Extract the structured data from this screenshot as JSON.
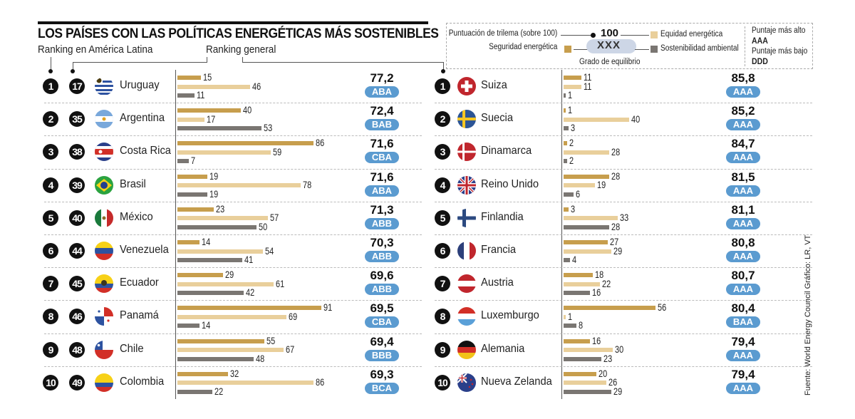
{
  "header": {
    "title": "LOS PAÍSES CON LAS POLÍTICAS ENERGÉTICAS MÁS SOSTENIBLES",
    "subtitle_latam": "Ranking en América Latina",
    "subtitle_general": "Ranking general"
  },
  "legend": {
    "trilemma_label": "Puntuación de trilema (sobre 100)",
    "trilemma_example": "100",
    "grade_example": "XXX",
    "grade_label": "Grado de equilibrio",
    "security_label": "Seguridad energética",
    "equity_label": "Equidad energética",
    "sustainability_label": "Sostenibilidad ambiental",
    "highest_label": "Puntaje más alto",
    "highest_value": "AAA",
    "lowest_label": "Puntaje más bajo",
    "lowest_value": "DDD",
    "colors": {
      "security": "#c79e4d",
      "equity": "#e9cf9b",
      "sustainability": "#7a7672",
      "grade_badge": "#5b9bd0"
    }
  },
  "source": "Fuente: World Energy Council Gráfico: LR, VT",
  "chart_data": [
    {
      "type": "bar",
      "title": "Ranking en América Latina",
      "series_names": [
        "Seguridad energética",
        "Equidad energética",
        "Sostenibilidad ambiental"
      ],
      "rows": [
        {
          "rank": "1",
          "general_rank": "17",
          "country": "Uruguay",
          "flag": "uruguay",
          "security": 15,
          "equity": 46,
          "sustainability": 11,
          "score": "77,2",
          "grade": "ABA"
        },
        {
          "rank": "2",
          "general_rank": "35",
          "country": "Argentina",
          "flag": "argentina",
          "security": 40,
          "equity": 17,
          "sustainability": 53,
          "score": "72,4",
          "grade": "BAB"
        },
        {
          "rank": "3",
          "general_rank": "38",
          "country": "Costa Rica",
          "flag": "costarica",
          "security": 86,
          "equity": 59,
          "sustainability": 7,
          "score": "71,6",
          "grade": "CBA"
        },
        {
          "rank": "4",
          "general_rank": "39",
          "country": "Brasil",
          "flag": "brasil",
          "security": 19,
          "equity": 78,
          "sustainability": 19,
          "score": "71,6",
          "grade": "ABA"
        },
        {
          "rank": "5",
          "general_rank": "40",
          "country": "México",
          "flag": "mexico",
          "security": 23,
          "equity": 57,
          "sustainability": 50,
          "score": "71,3",
          "grade": "ABB"
        },
        {
          "rank": "6",
          "general_rank": "44",
          "country": "Venezuela",
          "flag": "venezuela",
          "security": 14,
          "equity": 54,
          "sustainability": 41,
          "score": "70,3",
          "grade": "ABB"
        },
        {
          "rank": "7",
          "general_rank": "45",
          "country": "Ecuador",
          "flag": "ecuador",
          "security": 29,
          "equity": 61,
          "sustainability": 42,
          "score": "69,6",
          "grade": "ABB"
        },
        {
          "rank": "8",
          "general_rank": "46",
          "country": "Panamá",
          "flag": "panama",
          "security": 91,
          "equity": 69,
          "sustainability": 14,
          "score": "69,5",
          "grade": "CBA"
        },
        {
          "rank": "9",
          "general_rank": "48",
          "country": "Chile",
          "flag": "chile",
          "security": 55,
          "equity": 67,
          "sustainability": 48,
          "score": "69,4",
          "grade": "BBB"
        },
        {
          "rank": "10",
          "general_rank": "49",
          "country": "Colombia",
          "flag": "colombia",
          "security": 32,
          "equity": 86,
          "sustainability": 22,
          "score": "69,3",
          "grade": "BCA"
        }
      ]
    },
    {
      "type": "bar",
      "title": "Ranking general",
      "series_names": [
        "Seguridad energética",
        "Equidad energética",
        "Sostenibilidad ambiental"
      ],
      "rows": [
        {
          "rank": "1",
          "country": "Suiza",
          "flag": "suiza",
          "security": 11,
          "equity": 11,
          "sustainability": 1,
          "score": "85,8",
          "grade": "AAA"
        },
        {
          "rank": "2",
          "country": "Suecia",
          "flag": "suecia",
          "security": 1,
          "equity": 40,
          "sustainability": 3,
          "score": "85,2",
          "grade": "AAA"
        },
        {
          "rank": "3",
          "country": "Dinamarca",
          "flag": "dinamarca",
          "security": 2,
          "equity": 28,
          "sustainability": 2,
          "score": "84,7",
          "grade": "AAA"
        },
        {
          "rank": "4",
          "country": "Reino Unido",
          "flag": "uk",
          "security": 28,
          "equity": 19,
          "sustainability": 6,
          "score": "81,5",
          "grade": "AAA"
        },
        {
          "rank": "5",
          "country": "Finlandia",
          "flag": "finlandia",
          "security": 3,
          "equity": 33,
          "sustainability": 28,
          "score": "81,1",
          "grade": "AAA"
        },
        {
          "rank": "6",
          "country": "Francia",
          "flag": "francia",
          "security": 27,
          "equity": 29,
          "sustainability": 4,
          "score": "80,8",
          "grade": "AAA"
        },
        {
          "rank": "7",
          "country": "Austria",
          "flag": "austria",
          "security": 18,
          "equity": 22,
          "sustainability": 16,
          "score": "80,7",
          "grade": "AAA"
        },
        {
          "rank": "8",
          "country": "Luxemburgo",
          "flag": "luxemburgo",
          "security": 56,
          "equity": 1,
          "sustainability": 8,
          "score": "80,4",
          "grade": "BAA"
        },
        {
          "rank": "9",
          "country": "Alemania",
          "flag": "alemania",
          "security": 16,
          "equity": 30,
          "sustainability": 23,
          "score": "79,4",
          "grade": "AAA"
        },
        {
          "rank": "10",
          "country": "Nueva Zelanda",
          "flag": "nuevazelanda",
          "security": 20,
          "equity": 26,
          "sustainability": 29,
          "score": "79,4",
          "grade": "AAA"
        }
      ]
    }
  ]
}
